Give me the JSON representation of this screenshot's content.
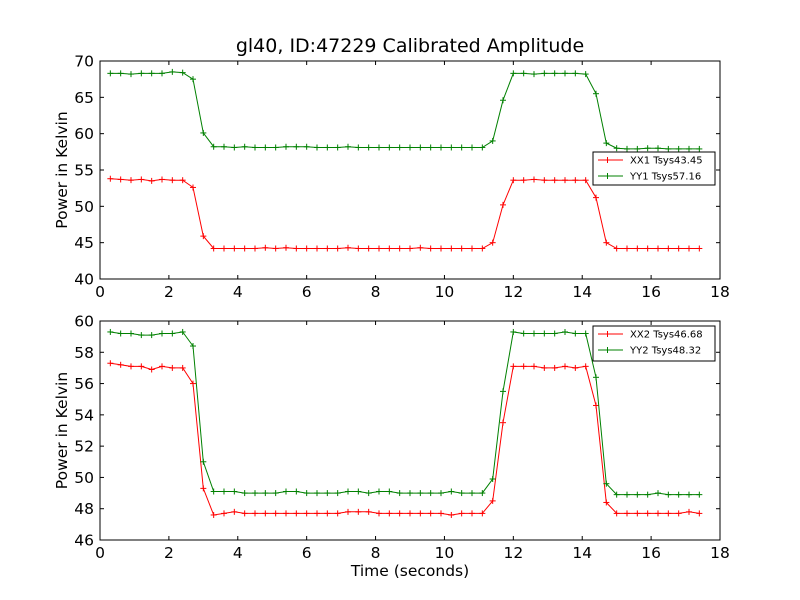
{
  "figure": {
    "title": "gl40, ID:47229 Calibrated Amplitude",
    "xlabel": "Time (seconds)"
  },
  "chart_data": [
    {
      "type": "line",
      "title": "gl40, ID:47229 Calibrated Amplitude",
      "xlabel": "",
      "ylabel": "Power in Kelvin",
      "xlim": [
        0,
        18
      ],
      "ylim": [
        40,
        70
      ],
      "xticks": [
        "0",
        "2",
        "4",
        "6",
        "8",
        "10",
        "12",
        "14",
        "16",
        "18"
      ],
      "yticks": [
        "40",
        "45",
        "50",
        "55",
        "60",
        "65",
        "70"
      ],
      "grid": false,
      "legend_position": "center-right",
      "marker": "+",
      "x": [
        0.3,
        0.6,
        0.9,
        1.2,
        1.5,
        1.8,
        2.1,
        2.4,
        2.7,
        3.0,
        3.3,
        3.6,
        3.9,
        4.2,
        4.5,
        4.8,
        5.1,
        5.4,
        5.7,
        6.0,
        6.3,
        6.6,
        6.9,
        7.2,
        7.5,
        7.8,
        8.1,
        8.4,
        8.7,
        9.0,
        9.3,
        9.6,
        9.9,
        10.2,
        10.5,
        10.8,
        11.1,
        11.4,
        11.7,
        12.0,
        12.3,
        12.6,
        12.9,
        13.2,
        13.5,
        13.8,
        14.1,
        14.4,
        14.7,
        15.0,
        15.3,
        15.6,
        15.9,
        16.2,
        16.5,
        16.8,
        17.1,
        17.4
      ],
      "series": [
        {
          "name": "XX1 Tsys43.45",
          "color": "#ff0000",
          "values": [
            53.8,
            53.7,
            53.6,
            53.7,
            53.5,
            53.7,
            53.6,
            53.6,
            52.6,
            45.9,
            44.2,
            44.2,
            44.2,
            44.2,
            44.2,
            44.3,
            44.2,
            44.3,
            44.2,
            44.2,
            44.2,
            44.2,
            44.2,
            44.3,
            44.2,
            44.2,
            44.2,
            44.2,
            44.2,
            44.2,
            44.3,
            44.2,
            44.2,
            44.2,
            44.2,
            44.2,
            44.2,
            45.0,
            50.2,
            53.6,
            53.6,
            53.7,
            53.6,
            53.6,
            53.6,
            53.6,
            53.6,
            51.2,
            45.0,
            44.2,
            44.2,
            44.2,
            44.2,
            44.2,
            44.2,
            44.2,
            44.2,
            44.2
          ]
        },
        {
          "name": "YY1 Tsys57.16",
          "color": "#008000",
          "values": [
            68.3,
            68.3,
            68.2,
            68.3,
            68.3,
            68.3,
            68.5,
            68.4,
            67.5,
            60.1,
            58.2,
            58.2,
            58.1,
            58.2,
            58.1,
            58.1,
            58.1,
            58.2,
            58.2,
            58.2,
            58.1,
            58.1,
            58.1,
            58.2,
            58.1,
            58.1,
            58.1,
            58.1,
            58.1,
            58.1,
            58.1,
            58.1,
            58.1,
            58.1,
            58.1,
            58.1,
            58.1,
            59.0,
            64.6,
            68.3,
            68.3,
            68.2,
            68.3,
            68.3,
            68.3,
            68.3,
            68.2,
            65.5,
            58.7,
            58.0,
            57.9,
            57.9,
            58.0,
            58.0,
            57.9,
            57.9,
            57.9,
            57.9
          ]
        }
      ]
    },
    {
      "type": "line",
      "title": "",
      "xlabel": "Time (seconds)",
      "ylabel": "Power in Kelvin",
      "xlim": [
        0,
        18
      ],
      "ylim": [
        46,
        60
      ],
      "xticks": [
        "0",
        "2",
        "4",
        "6",
        "8",
        "10",
        "12",
        "14",
        "16",
        "18"
      ],
      "yticks": [
        "46",
        "48",
        "50",
        "52",
        "54",
        "56",
        "58",
        "60"
      ],
      "grid": false,
      "legend_position": "top-right",
      "marker": "+",
      "x": [
        0.3,
        0.6,
        0.9,
        1.2,
        1.5,
        1.8,
        2.1,
        2.4,
        2.7,
        3.0,
        3.3,
        3.6,
        3.9,
        4.2,
        4.5,
        4.8,
        5.1,
        5.4,
        5.7,
        6.0,
        6.3,
        6.6,
        6.9,
        7.2,
        7.5,
        7.8,
        8.1,
        8.4,
        8.7,
        9.0,
        9.3,
        9.6,
        9.9,
        10.2,
        10.5,
        10.8,
        11.1,
        11.4,
        11.7,
        12.0,
        12.3,
        12.6,
        12.9,
        13.2,
        13.5,
        13.8,
        14.1,
        14.4,
        14.7,
        15.0,
        15.3,
        15.6,
        15.9,
        16.2,
        16.5,
        16.8,
        17.1,
        17.4
      ],
      "series": [
        {
          "name": "XX2 Tsys46.68",
          "color": "#ff0000",
          "values": [
            57.3,
            57.2,
            57.1,
            57.1,
            56.9,
            57.1,
            57.0,
            57.0,
            56.0,
            49.3,
            47.6,
            47.7,
            47.8,
            47.7,
            47.7,
            47.7,
            47.7,
            47.7,
            47.7,
            47.7,
            47.7,
            47.7,
            47.7,
            47.8,
            47.8,
            47.8,
            47.7,
            47.7,
            47.7,
            47.7,
            47.7,
            47.7,
            47.7,
            47.6,
            47.7,
            47.7,
            47.7,
            48.5,
            53.5,
            57.1,
            57.1,
            57.1,
            57.0,
            57.0,
            57.1,
            57.0,
            57.1,
            54.6,
            48.4,
            47.7,
            47.7,
            47.7,
            47.7,
            47.7,
            47.7,
            47.7,
            47.8,
            47.7
          ]
        },
        {
          "name": "YY2 Tsys48.32",
          "color": "#008000",
          "values": [
            59.3,
            59.2,
            59.2,
            59.1,
            59.1,
            59.2,
            59.2,
            59.3,
            58.4,
            51.0,
            49.1,
            49.1,
            49.1,
            49.0,
            49.0,
            49.0,
            49.0,
            49.1,
            49.1,
            49.0,
            49.0,
            49.0,
            49.0,
            49.1,
            49.1,
            49.0,
            49.1,
            49.1,
            49.0,
            49.0,
            49.0,
            49.0,
            49.0,
            49.1,
            49.0,
            49.0,
            49.0,
            49.9,
            55.5,
            59.3,
            59.2,
            59.2,
            59.2,
            59.2,
            59.3,
            59.2,
            59.2,
            56.4,
            49.6,
            48.9,
            48.9,
            48.9,
            48.9,
            49.0,
            48.9,
            48.9,
            48.9,
            48.9
          ]
        }
      ]
    }
  ]
}
